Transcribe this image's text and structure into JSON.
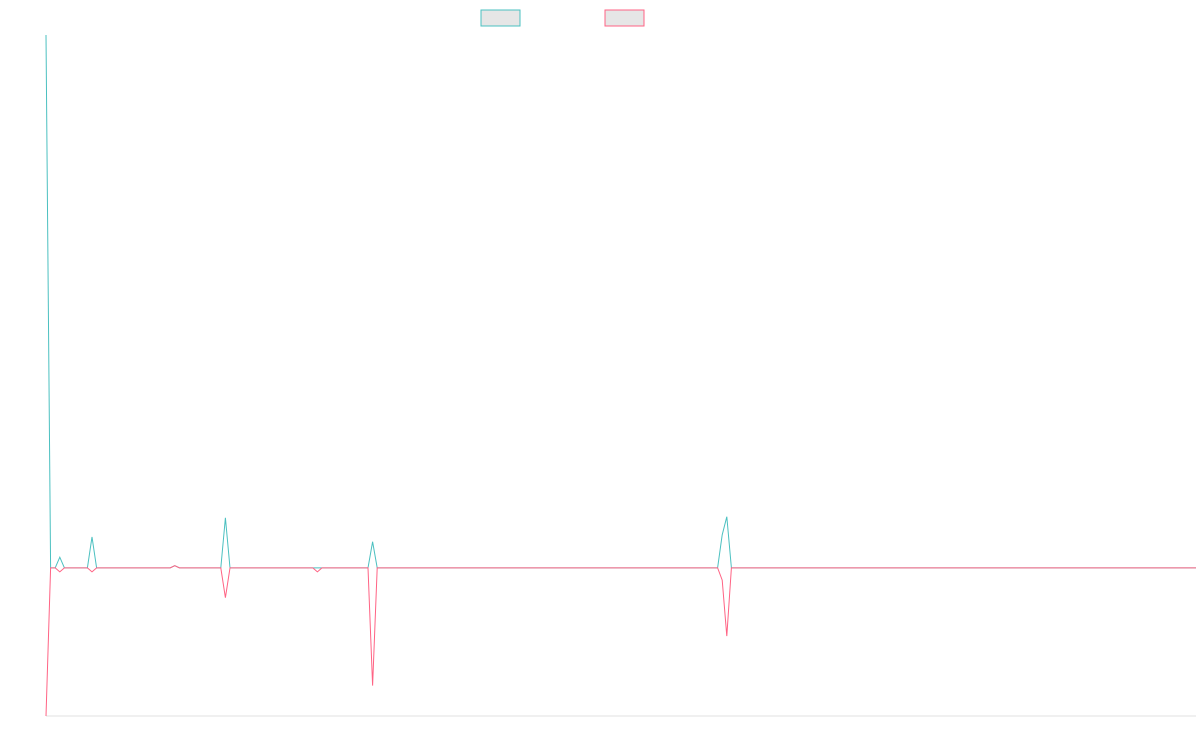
{
  "chart_data": {
    "type": "line",
    "x": [
      0,
      1,
      2,
      3,
      4,
      9,
      10,
      11,
      27,
      28,
      29,
      38,
      39,
      40,
      58,
      59,
      60,
      70,
      71,
      72,
      146,
      147,
      148,
      149,
      250
    ],
    "series": [
      {
        "color": "#4bc0c0",
        "values": [
          100,
          0,
          0,
          2,
          0,
          0,
          5.8,
          0,
          0,
          0.4,
          0,
          0,
          9.4,
          0,
          0,
          0,
          0,
          0,
          4.9,
          0,
          0,
          6.2,
          9.6,
          0,
          0
        ]
      },
      {
        "color": "#ff6384",
        "values": [
          -27.8,
          0,
          0,
          -0.75,
          0,
          0,
          -0.75,
          0,
          0,
          0.4,
          0,
          0,
          -5.6,
          0,
          0,
          -0.75,
          0,
          0,
          -22.1,
          0,
          0,
          -2.3,
          -12.8,
          0,
          0
        ]
      }
    ],
    "xlim": [
      0,
      250
    ],
    "ylim": [
      -27.8,
      100
    ]
  }
}
